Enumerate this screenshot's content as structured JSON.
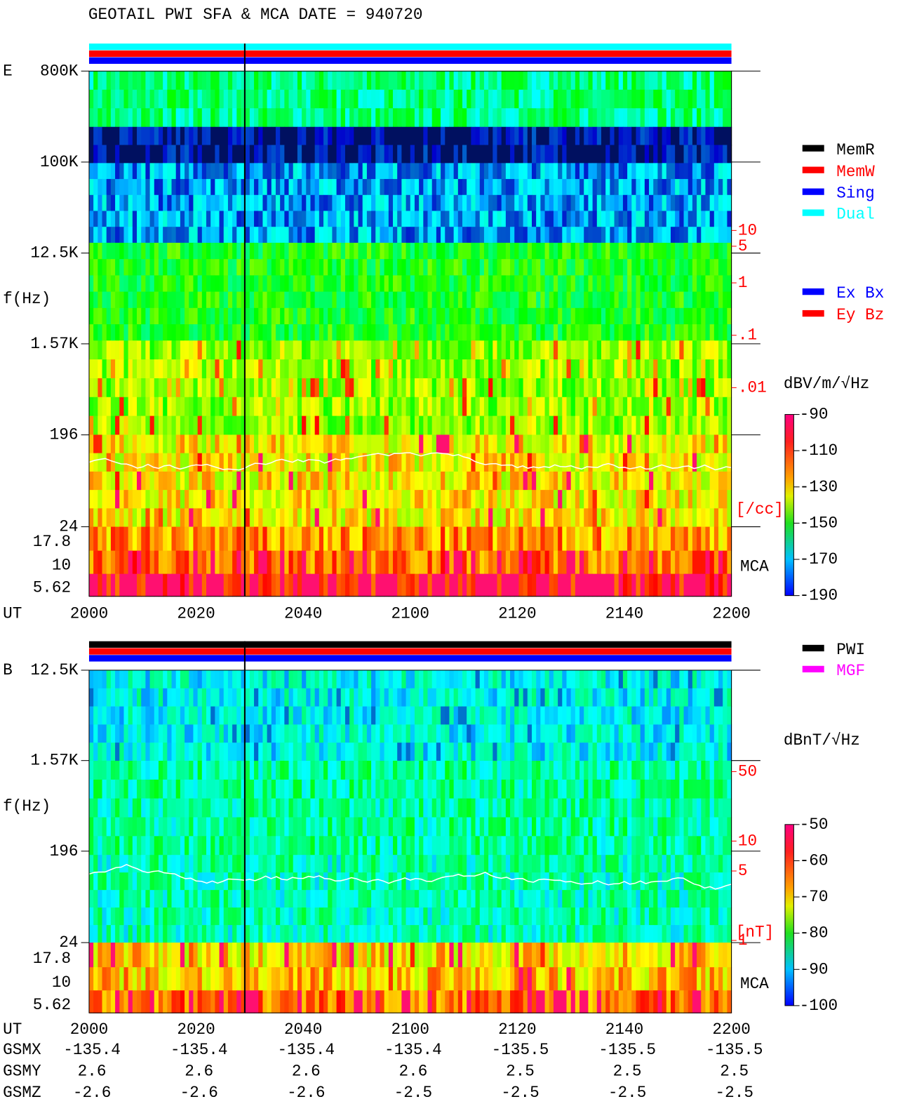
{
  "chart_data": {
    "type": "spectrogram",
    "title": "GEOTAIL  PWI SFA & MCA   DATE = 940720",
    "x_label": "UT",
    "x_categories": [
      "2000",
      "2020",
      "2040",
      "2100",
      "2120",
      "2140",
      "2200"
    ],
    "panels": [
      {
        "name": "E",
        "y_label": "f(Hz)",
        "log_scale": true,
        "ylim": [
          24,
          800000
        ],
        "yticks": [
          {
            "value": 800000,
            "label": "800K"
          },
          {
            "value": 100000,
            "label": "100K"
          },
          {
            "value": 12500,
            "label": "12.5K"
          },
          {
            "value": 1570,
            "label": "1.57K"
          },
          196,
          24
        ],
        "mca_label": "MCA",
        "mca_ticks": [
          17.8,
          10,
          5.62
        ],
        "density_label": "[/cc]",
        "density_lim": [
          0.01,
          10
        ],
        "density_ticks": [
          10,
          5,
          1,
          {
            "value": 0.1,
            "label": ".1"
          },
          {
            "value": 0.01,
            "label": ".01"
          }
        ],
        "colorbar_label": "dBV/m/√Hz",
        "colorbar_lim": [
          -190,
          -90
        ],
        "colorbar_ticks": [
          -90,
          -110,
          -130,
          -150,
          -170,
          -190
        ]
      },
      {
        "name": "B",
        "y_label": "f(Hz)",
        "log_scale": true,
        "ylim": [
          24,
          12500
        ],
        "yticks": [
          {
            "value": 12500,
            "label": "12.5K"
          },
          {
            "value": 1570,
            "label": "1.57K"
          },
          196,
          24
        ],
        "mca_label": "MCA",
        "mca_ticks": [
          17.8,
          10,
          5.62
        ],
        "density_label": "[nT]",
        "density_lim": [
          1,
          50
        ],
        "density_ticks": [
          50,
          10,
          5,
          1
        ],
        "colorbar_label": "dBnT/√Hz",
        "colorbar_lim": [
          -100,
          -50
        ],
        "colorbar_ticks": [
          -50,
          -60,
          -70,
          -80,
          -90,
          -100
        ]
      }
    ],
    "mode_legend": [
      {
        "name": "MemR",
        "color": "#000000"
      },
      {
        "name": "MemW",
        "color": "#ff0000"
      },
      {
        "name": "Sing",
        "color": "#0000ff"
      },
      {
        "name": "Dual",
        "color": "#00ffff"
      }
    ],
    "component_legend": [
      {
        "name": "Ex Bx",
        "color": "#0000ff"
      },
      {
        "name": "Ey Bz",
        "color": "#ff0000"
      }
    ],
    "source_legend": [
      {
        "name": "PWI",
        "color": "#000000"
      },
      {
        "name": "MGF",
        "color": "#ff00ff"
      }
    ],
    "orbit": [
      {
        "name": "GSMX",
        "values": [
          -135.4,
          -135.4,
          -135.4,
          -135.4,
          -135.5,
          -135.5,
          -135.5
        ]
      },
      {
        "name": "GSMY",
        "values": [
          2.6,
          2.6,
          2.6,
          2.6,
          2.5,
          2.5,
          2.5
        ]
      },
      {
        "name": "GSMZ",
        "values": [
          -2.6,
          -2.6,
          -2.6,
          -2.5,
          -2.5,
          -2.5,
          -2.5
        ]
      }
    ]
  }
}
